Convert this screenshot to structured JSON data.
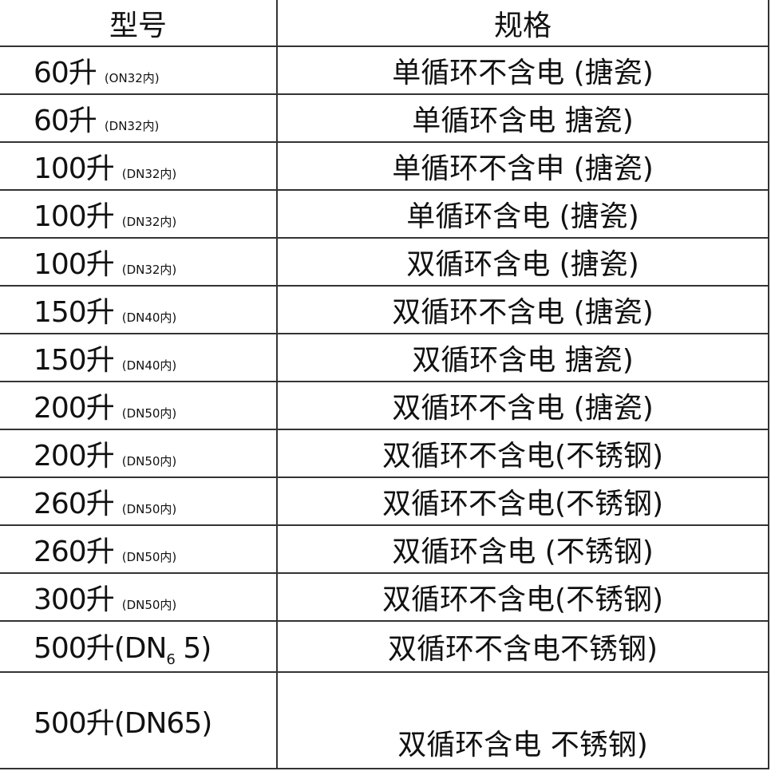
{
  "header": {
    "model": "型号",
    "spec": "规格"
  },
  "rows": [
    {
      "model": "60升",
      "note": "(ON32内)",
      "spec": "单循环不含电 (搪瓷)"
    },
    {
      "model": "60升",
      "note": "(DN32内)",
      "spec": "单循环含电 搪瓷)"
    },
    {
      "model": "100升",
      "note": "(DN32内)",
      "spec": "单循环不含申 (搪瓷)"
    },
    {
      "model": "100升",
      "note": "(DN32内)",
      "spec": "单循环含电 (搪瓷)"
    },
    {
      "model": "100升",
      "note": "(DN32内)",
      "spec": "双循环含电 (搪瓷)"
    },
    {
      "model": "150升",
      "note": "(DN40内)",
      "spec": "双循环不含电 (搪瓷)"
    },
    {
      "model": "150升",
      "note": "(DN40内)",
      "spec": "双循环含电  搪瓷)"
    },
    {
      "model": "200升",
      "note": "(DN50内)",
      "spec": "双循环不含电 (搪瓷)"
    },
    {
      "model": "200升",
      "note": "(DN50内)",
      "spec": "双循环不含电(不锈钢)"
    },
    {
      "model": "260升",
      "note": "(DN50内)",
      "spec": "双循环不含电(不锈钢)"
    },
    {
      "model": "260升",
      "note": "(DN50内)",
      "spec": "双循环含电 (不锈钢)"
    },
    {
      "model": "300升",
      "note": "(DN50内)",
      "spec": "双循环不含电(不锈钢)"
    }
  ],
  "row13": {
    "model_a": "500升(DN",
    "model_sub": "6",
    "model_b": " 5)",
    "spec": "双循环不含电不锈钢)"
  },
  "row14": {
    "model": "500升(DN65)",
    "spec": "双循环含电 不锈钢)"
  }
}
